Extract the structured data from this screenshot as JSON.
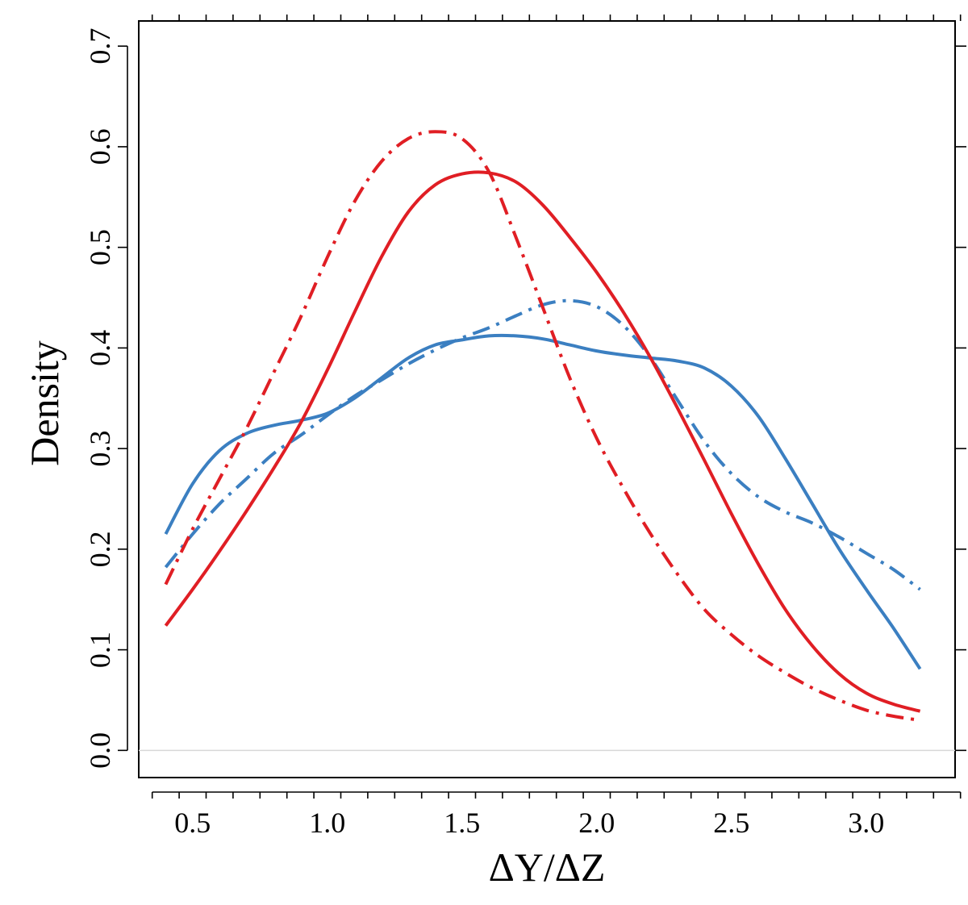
{
  "chart_data": {
    "type": "line",
    "title": "",
    "xlabel": "ΔY/ΔZ",
    "ylabel": "Density",
    "xlim": [
      0.3,
      3.33
    ],
    "ylim": [
      -0.027,
      0.725
    ],
    "x_ticks": [
      "0.5",
      "1.0",
      "1.5",
      "2.0",
      "2.5",
      "3.0"
    ],
    "x_tick_values": [
      0.5,
      1.0,
      1.5,
      2.0,
      2.5,
      3.0
    ],
    "y_ticks": [
      "0.0",
      "0.1",
      "0.2",
      "0.3",
      "0.4",
      "0.5",
      "0.6",
      "0.7"
    ],
    "y_tick_values": [
      0.0,
      0.1,
      0.2,
      0.3,
      0.4,
      0.5,
      0.6,
      0.7
    ],
    "reference_line_y": 0.0,
    "series": [
      {
        "name": "blue-solid",
        "color": "#3b7fc1",
        "dash": "solid",
        "x": [
          0.4,
          0.5,
          0.6,
          0.7,
          0.8,
          0.9,
          1.0,
          1.1,
          1.2,
          1.3,
          1.4,
          1.5,
          1.6,
          1.7,
          1.8,
          1.9,
          2.0,
          2.1,
          2.2,
          2.3,
          2.4,
          2.5,
          2.6,
          2.7,
          2.8,
          2.9,
          3.0,
          3.1,
          3.2
        ],
        "y": [
          0.215,
          0.265,
          0.298,
          0.315,
          0.323,
          0.328,
          0.335,
          0.35,
          0.37,
          0.39,
          0.403,
          0.408,
          0.412,
          0.412,
          0.409,
          0.403,
          0.397,
          0.393,
          0.39,
          0.387,
          0.38,
          0.362,
          0.332,
          0.29,
          0.245,
          0.2,
          0.16,
          0.122,
          0.081
        ]
      },
      {
        "name": "blue-dashdot",
        "color": "#3b7fc1",
        "dash": "dashdot",
        "x": [
          0.4,
          0.5,
          0.6,
          0.7,
          0.8,
          0.9,
          1.0,
          1.1,
          1.2,
          1.3,
          1.4,
          1.5,
          1.6,
          1.7,
          1.8,
          1.9,
          2.0,
          2.1,
          2.2,
          2.3,
          2.4,
          2.5,
          2.6,
          2.7,
          2.8,
          2.9,
          3.0,
          3.1,
          3.2
        ],
        "y": [
          0.182,
          0.215,
          0.245,
          0.27,
          0.295,
          0.313,
          0.333,
          0.352,
          0.368,
          0.384,
          0.398,
          0.41,
          0.42,
          0.432,
          0.443,
          0.447,
          0.441,
          0.422,
          0.39,
          0.348,
          0.307,
          0.275,
          0.252,
          0.237,
          0.226,
          0.212,
          0.196,
          0.18,
          0.16
        ]
      },
      {
        "name": "red-solid",
        "color": "#e01e24",
        "dash": "solid",
        "x": [
          0.4,
          0.5,
          0.6,
          0.7,
          0.8,
          0.9,
          1.0,
          1.1,
          1.2,
          1.3,
          1.4,
          1.5,
          1.6,
          1.7,
          1.8,
          1.9,
          2.0,
          2.1,
          2.2,
          2.3,
          2.4,
          2.5,
          2.6,
          2.7,
          2.8,
          2.9,
          3.0,
          3.1,
          3.2
        ],
        "y": [
          0.124,
          0.16,
          0.198,
          0.238,
          0.28,
          0.325,
          0.378,
          0.435,
          0.49,
          0.535,
          0.562,
          0.573,
          0.574,
          0.565,
          0.542,
          0.51,
          0.475,
          0.435,
          0.39,
          0.34,
          0.288,
          0.235,
          0.185,
          0.14,
          0.104,
          0.076,
          0.057,
          0.046,
          0.039
        ]
      },
      {
        "name": "red-dashdot",
        "color": "#e01e24",
        "dash": "dashdot",
        "x": [
          0.4,
          0.5,
          0.6,
          0.7,
          0.8,
          0.9,
          1.0,
          1.1,
          1.2,
          1.3,
          1.4,
          1.5,
          1.6,
          1.7,
          1.8,
          1.9,
          2.0,
          2.1,
          2.2,
          2.3,
          2.4,
          2.5,
          2.6,
          2.7,
          2.8,
          2.9,
          3.0,
          3.1,
          3.2
        ],
        "y": [
          0.165,
          0.22,
          0.27,
          0.32,
          0.375,
          0.43,
          0.49,
          0.545,
          0.585,
          0.608,
          0.615,
          0.608,
          0.575,
          0.51,
          0.44,
          0.37,
          0.31,
          0.26,
          0.215,
          0.175,
          0.14,
          0.115,
          0.094,
          0.077,
          0.062,
          0.05,
          0.04,
          0.034,
          0.03
        ]
      }
    ]
  }
}
